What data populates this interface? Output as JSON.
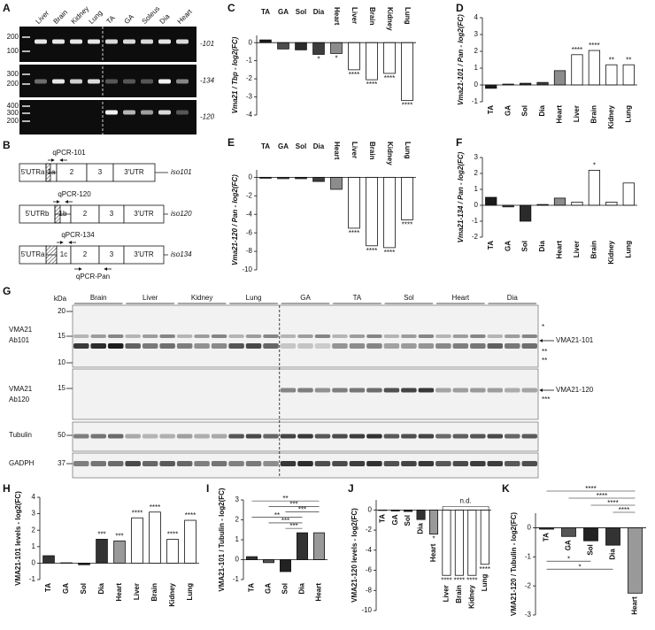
{
  "panel_labels": [
    "A",
    "B",
    "C",
    "D",
    "E",
    "F",
    "G",
    "H",
    "I",
    "J",
    "K"
  ],
  "gel_a": {
    "lanes": [
      "Liver",
      "Brain",
      "Kidney",
      "Lung",
      "TA",
      "GA",
      "Soleus",
      "Dia",
      "Heart"
    ],
    "rows": [
      {
        "label": "-101",
        "markers": [
          "200",
          "100"
        ]
      },
      {
        "label": "-134",
        "markers": [
          "300",
          "200"
        ]
      },
      {
        "label": "-120",
        "markers": [
          "400",
          "300",
          "200"
        ]
      }
    ]
  },
  "diagram_b": {
    "isoforms": [
      {
        "name": "iso101",
        "primer": "qPCR-101",
        "segments": [
          "5'UTRa",
          "1a",
          "2",
          "3",
          "3'UTR"
        ]
      },
      {
        "name": "iso120",
        "primer": "qPCR-120",
        "segments": [
          "5'UTRb",
          "1b",
          "2",
          "3",
          "3'UTR"
        ]
      },
      {
        "name": "iso134",
        "primer": "qPCR-134",
        "segments": [
          "5'UTRa",
          "1c",
          "2",
          "3",
          "3'UTR"
        ]
      }
    ],
    "pan_primer": "qPCR-Pan"
  },
  "blot_g": {
    "unit": "kDa",
    "groups": [
      "Brain",
      "Liver",
      "Kidney",
      "Lung",
      "GA",
      "TA",
      "Sol",
      "Heart",
      "Dia"
    ],
    "rows": [
      {
        "label": [
          "VMA21",
          "Ab101"
        ],
        "markers": [
          "20",
          "15",
          "10"
        ]
      },
      {
        "label": [
          "VMA21",
          "Ab120"
        ],
        "markers": [
          "15"
        ]
      },
      {
        "label": [
          "Tubulin"
        ],
        "markers": [
          "50"
        ]
      },
      {
        "label": [
          "GADPH"
        ],
        "markers": [
          "37"
        ]
      }
    ],
    "right_labels": [
      "*",
      "VMA21-101",
      "**",
      "**",
      "VMA21-120",
      "***"
    ]
  },
  "chart_data": [
    {
      "type": "bar",
      "y_label": "Vma21 / Tbp - log2(FC)",
      "categories": [
        "TA",
        "GA",
        "Sol",
        "Dia",
        "Heart",
        "Liver",
        "Brain",
        "Kidney",
        "Lung"
      ],
      "values": [
        0.15,
        -0.35,
        -0.4,
        -0.65,
        -0.6,
        -1.5,
        -2.05,
        -1.7,
        -3.2
      ],
      "colors": [
        "#1a1a1a",
        "#4d4d4d",
        "#2b2b2b",
        "#3d3d3d",
        "#8c8c8c",
        "#ffffff",
        "#ffffff",
        "#ffffff",
        "#ffffff"
      ],
      "annotations": [
        null,
        null,
        null,
        "*",
        "*",
        "****",
        "****",
        "****",
        "****"
      ],
      "ylim": [
        -4,
        0.4
      ],
      "yticks": [
        0,
        -1,
        -2,
        -3,
        -4
      ]
    },
    {
      "type": "bar",
      "y_label": "Vma21-101 / Pan - log2(FC)",
      "categories": [
        "TA",
        "GA",
        "Sol",
        "Dia",
        "Heart",
        "Liver",
        "Brain",
        "Kidney",
        "Lung"
      ],
      "values": [
        -0.2,
        0.05,
        0.1,
        0.15,
        0.85,
        1.8,
        2.05,
        1.2,
        1.2
      ],
      "colors": [
        "#1a1a1a",
        "#4d4d4d",
        "#2b2b2b",
        "#3d3d3d",
        "#8c8c8c",
        "#ffffff",
        "#ffffff",
        "#ffffff",
        "#ffffff"
      ],
      "annotations": [
        null,
        null,
        null,
        null,
        null,
        "****",
        "****",
        "**",
        "**"
      ],
      "ylim": [
        -1,
        4
      ],
      "yticks": [
        -1,
        0,
        1,
        2,
        3,
        4
      ]
    },
    {
      "type": "bar",
      "y_label": "Vma21-120 / Pan - log2(FC)",
      "categories": [
        "TA",
        "GA",
        "Sol",
        "Dia",
        "Heart",
        "Liver",
        "Brain",
        "Kidney",
        "Lung"
      ],
      "values": [
        -0.1,
        -0.15,
        -0.15,
        -0.45,
        -1.3,
        -5.5,
        -7.4,
        -7.6,
        -4.6
      ],
      "colors": [
        "#1a1a1a",
        "#4d4d4d",
        "#2b2b2b",
        "#3d3d3d",
        "#8c8c8c",
        "#ffffff",
        "#ffffff",
        "#ffffff",
        "#ffffff"
      ],
      "annotations": [
        null,
        null,
        null,
        null,
        null,
        "****",
        "****",
        "****",
        "****"
      ],
      "ylim": [
        -10,
        0.8
      ],
      "yticks": [
        0,
        -2,
        -4,
        -6,
        -8,
        -10
      ]
    },
    {
      "type": "bar",
      "y_label": "Vma21-134 / Pan - log2(FC)",
      "categories": [
        "TA",
        "GA",
        "Sol",
        "Dia",
        "Heart",
        "Liver",
        "Brain",
        "Kidney",
        "Lung"
      ],
      "values": [
        0.5,
        -0.1,
        -1.0,
        0.05,
        0.45,
        0.2,
        2.2,
        0.2,
        1.4
      ],
      "colors": [
        "#1a1a1a",
        "#4d4d4d",
        "#2b2b2b",
        "#3d3d3d",
        "#8c8c8c",
        "#ffffff",
        "#ffffff",
        "#ffffff",
        "#ffffff"
      ],
      "annotations": [
        null,
        null,
        null,
        null,
        null,
        null,
        "*",
        null,
        null
      ],
      "ylim": [
        -2,
        3
      ],
      "yticks": [
        -2,
        -1,
        0,
        1,
        2,
        3
      ]
    },
    {
      "type": "bar",
      "y_label": "VMA21-101 levels - log2(FC)",
      "categories": [
        "TA",
        "GA",
        "Sol",
        "Dia",
        "Heart",
        "Liver",
        "Brain",
        "Kidney",
        "Lung"
      ],
      "values": [
        0.45,
        0.02,
        -0.1,
        1.45,
        1.35,
        2.75,
        3.1,
        1.45,
        2.6
      ],
      "colors": [
        "#333333",
        "#555555",
        "#222222",
        "#333333",
        "#999999",
        "#ffffff",
        "#ffffff",
        "#ffffff",
        "#ffffff"
      ],
      "annotations": [
        null,
        null,
        null,
        "***",
        "***",
        "****",
        "****",
        "****",
        "****"
      ],
      "ylim": [
        -1,
        4
      ],
      "yticks": [
        -1,
        0,
        1,
        2,
        3,
        4
      ]
    },
    {
      "type": "bar",
      "y_label": "VMA21-101 / Tubulin - log2(FC)",
      "categories": [
        "TA",
        "GA",
        "Sol",
        "Dia",
        "Heart"
      ],
      "values": [
        0.15,
        -0.15,
        -0.6,
        1.35,
        1.35
      ],
      "colors": [
        "#333333",
        "#555555",
        "#222222",
        "#333333",
        "#999999"
      ],
      "annotations": [
        null,
        null,
        null,
        null,
        null
      ],
      "comparisons": [
        "**",
        "***",
        "***",
        "**",
        "***",
        "***"
      ],
      "ylim": [
        -1,
        3
      ],
      "yticks": [
        -1,
        0,
        1,
        2,
        3
      ]
    },
    {
      "type": "bar",
      "y_label": "VMA21-120 levels - log2(FC)",
      "categories": [
        "TA",
        "GA",
        "Sol",
        "Dia",
        "Heart",
        "Liver",
        "Brain",
        "Kidney",
        "Lung"
      ],
      "values": [
        -0.05,
        -0.1,
        -0.15,
        -0.95,
        -2.4,
        -6.5,
        -6.5,
        -6.5,
        -5.4
      ],
      "colors": [
        "#333333",
        "#555555",
        "#222222",
        "#333333",
        "#999999",
        "#ffffff",
        "#ffffff",
        "#ffffff",
        "#ffffff"
      ],
      "annotations": [
        null,
        null,
        null,
        null,
        "*",
        "****",
        "****",
        "****",
        "****"
      ],
      "note": "n.d.",
      "ylim": [
        -10,
        1
      ],
      "yticks": [
        0,
        -2,
        -4,
        -6,
        -8,
        -10
      ]
    },
    {
      "type": "bar",
      "y_label": "VMA21-120 / Tubulin - log2(FC)",
      "categories": [
        "TA",
        "GA",
        "Sol",
        "Dia",
        "Heart"
      ],
      "values": [
        -0.05,
        -0.3,
        -0.45,
        -0.6,
        -2.25
      ],
      "colors": [
        "#333333",
        "#555555",
        "#222222",
        "#333333",
        "#999999"
      ],
      "annotations": [
        null,
        null,
        null,
        null,
        null
      ],
      "comparisons": [
        "****",
        "****",
        "****",
        "****",
        "*",
        "*"
      ],
      "ylim": [
        -3,
        0.5
      ],
      "yticks": [
        0,
        -1,
        -2,
        -3
      ]
    }
  ]
}
